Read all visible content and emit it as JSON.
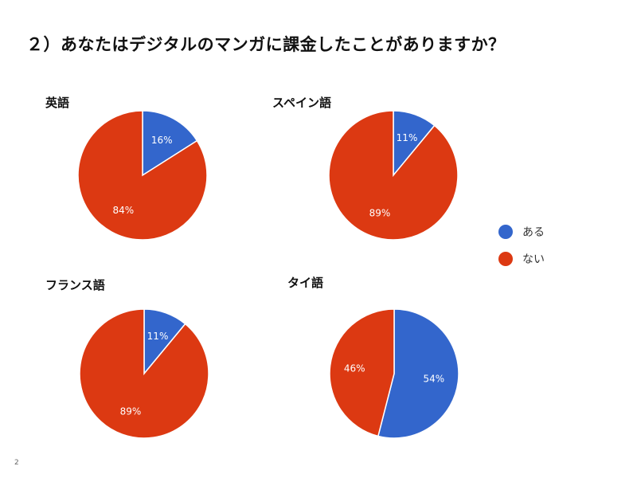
{
  "title": "２）あなたはデジタルのマンガに課金したことがありますか？",
  "page_number": "2",
  "colors": {
    "aru": "#3366cc",
    "nai": "#dc3912"
  },
  "legend": [
    {
      "label": "ある",
      "color": "#3366cc"
    },
    {
      "label": "ない",
      "color": "#dc3912"
    }
  ],
  "chart_data": [
    {
      "type": "pie",
      "title": "英語",
      "categories": [
        "ある",
        "ない"
      ],
      "values": [
        16,
        84
      ],
      "labels": [
        "16%",
        "84%"
      ]
    },
    {
      "type": "pie",
      "title": "スペイン語",
      "categories": [
        "ある",
        "ない"
      ],
      "values": [
        11,
        89
      ],
      "labels": [
        "11%",
        "89%"
      ]
    },
    {
      "type": "pie",
      "title": "フランス語",
      "categories": [
        "ある",
        "ない"
      ],
      "values": [
        11,
        89
      ],
      "labels": [
        "11%",
        "89%"
      ]
    },
    {
      "type": "pie",
      "title": "タイ語",
      "categories": [
        "ある",
        "ない"
      ],
      "values": [
        54,
        46
      ],
      "labels": [
        "54%",
        "46%"
      ]
    }
  ]
}
